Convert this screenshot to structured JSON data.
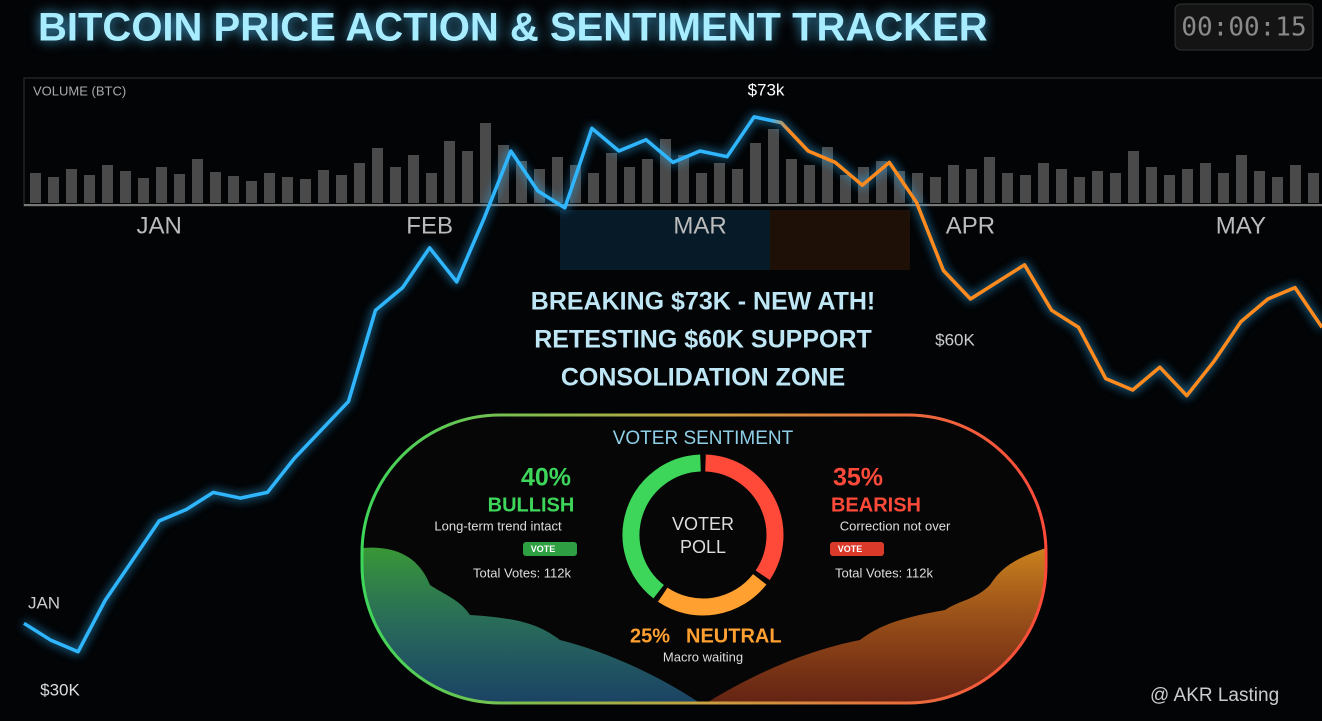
{
  "header": {
    "title": "BITCOIN PRICE ACTION & SENTIMENT TRACKER",
    "timer": "00:00:15"
  },
  "chart_data": [
    {
      "type": "bar",
      "title": "VOLUME (BTC)",
      "color": "#4a4a4a",
      "values": [
        30,
        26,
        34,
        28,
        38,
        32,
        25,
        36,
        29,
        44,
        31,
        27,
        22,
        30,
        26,
        24,
        33,
        28,
        40,
        55,
        36,
        48,
        30,
        62,
        52,
        80,
        58,
        42,
        34,
        46,
        38,
        30,
        50,
        36,
        44,
        64,
        48,
        30,
        40,
        34,
        60,
        74,
        44,
        38,
        56,
        28,
        36,
        42,
        32,
        30,
        26,
        38,
        34,
        46,
        30,
        28,
        40,
        34,
        26,
        32,
        30,
        52,
        36,
        28,
        34,
        40,
        30,
        48,
        32,
        26,
        38,
        30
      ]
    },
    {
      "type": "line",
      "categories": [
        null,
        null,
        null,
        null,
        null,
        "JAN",
        null,
        null,
        null,
        null,
        null,
        null,
        null,
        null,
        null,
        "FEB",
        null,
        null,
        null,
        null,
        null,
        null,
        null,
        null,
        null,
        "MAR",
        null,
        null,
        null,
        null,
        null,
        null,
        null,
        null,
        null,
        "APR",
        null,
        null,
        null,
        null,
        null,
        null,
        null,
        null,
        null,
        "MAY",
        null,
        null,
        null
      ],
      "values": [
        28.5,
        27,
        26,
        30.5,
        34,
        37.5,
        38.5,
        40,
        39.5,
        40,
        43,
        45.5,
        48,
        56,
        58,
        61.5,
        58.5,
        64,
        70,
        66.5,
        65,
        72,
        70,
        71,
        69,
        70,
        69.5,
        73,
        72.5,
        70,
        69,
        67,
        69,
        65.5,
        59.5,
        57,
        58.5,
        60,
        56,
        54.5,
        50,
        49,
        51,
        48.5,
        51.5,
        55,
        57,
        58,
        54.5
      ],
      "ylim": [
        20,
        78
      ],
      "colors": [
        "#2fb6ff",
        "#ff8a1e"
      ],
      "annotations": [
        "$73k",
        "$60K",
        "$30K",
        "JAN"
      ]
    },
    {
      "type": "pie",
      "title": "VOTER SENTIMENT",
      "center_label": [
        "VOTER",
        "POLL"
      ],
      "categories": [
        "BULLISH",
        "BEARISH",
        "NEUTRAL"
      ],
      "values": [
        40,
        35,
        25
      ],
      "value_labels": [
        "40%",
        "35%",
        "25%"
      ],
      "colors": [
        "#3ed65a",
        "#ff4a3a",
        "#ffa030"
      ],
      "notes": [
        "Long-term trend intact",
        "Correction not over",
        "Macro waiting"
      ],
      "vote_buttons": [
        "VOTE",
        "VOTE"
      ],
      "totals": [
        "Total Votes: 112k",
        "Total Votes: 112k"
      ]
    }
  ],
  "headline": [
    "BREAKING $73K - NEW ATH!",
    "RETESTING $60K SUPPORT",
    "CONSOLIDATION ZONE"
  ],
  "watermark": "@ AKR Lasting"
}
